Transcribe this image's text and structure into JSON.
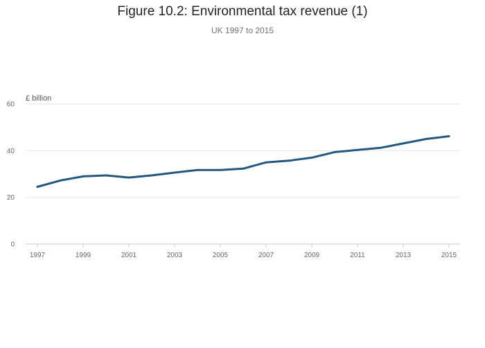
{
  "title": "Figure 10.2: Environmental tax revenue (1)",
  "subtitle": "UK 1997 to 2015",
  "chart_data": {
    "type": "line",
    "title": "Figure 10.2: Environmental tax revenue (1)",
    "subtitle": "UK 1997 to 2015",
    "ylabel": "£ billion",
    "xlabel": "",
    "x": [
      1997,
      1998,
      1999,
      2000,
      2001,
      2002,
      2003,
      2004,
      2005,
      2006,
      2007,
      2008,
      2009,
      2010,
      2011,
      2012,
      2013,
      2014,
      2015
    ],
    "series": [
      {
        "name": "Environmental tax revenue",
        "color": "#23577f",
        "values": [
          24.5,
          27.2,
          29.0,
          29.4,
          28.5,
          29.4,
          30.6,
          31.7,
          31.7,
          32.3,
          35.0,
          35.7,
          37.0,
          39.4,
          40.3,
          41.2,
          43.1,
          45.0,
          46.2
        ]
      }
    ],
    "xlim": [
      1997,
      2015
    ],
    "ylim": [
      0,
      60
    ],
    "x_ticks": [
      "1997",
      "1999",
      "2001",
      "2003",
      "2005",
      "2007",
      "2009",
      "2011",
      "2013",
      "2015"
    ],
    "y_ticks": [
      "0",
      "20",
      "40",
      "60"
    ],
    "grid": true,
    "legend": "none"
  }
}
